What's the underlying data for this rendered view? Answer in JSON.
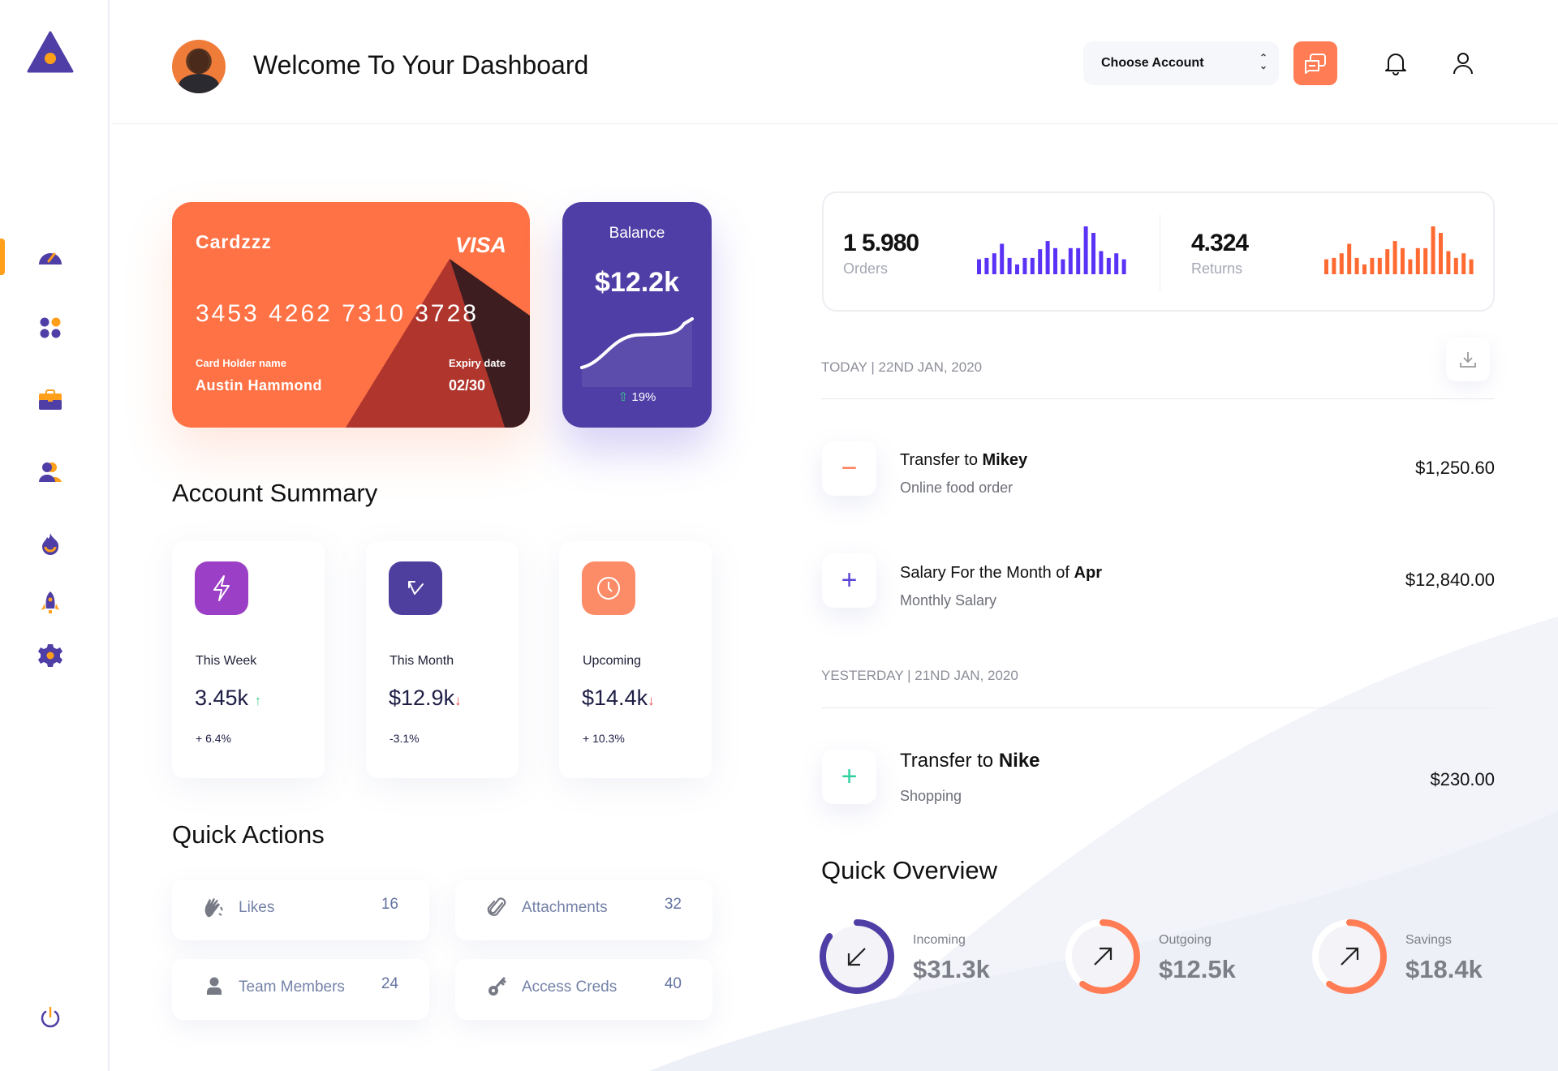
{
  "header": {
    "title": "Welcome To Your Dashboard",
    "account_select": "Choose Account"
  },
  "sidebar": {
    "items": [
      "dashboard",
      "apps",
      "portfolio",
      "users",
      "trending",
      "launch",
      "settings"
    ],
    "active": "dashboard"
  },
  "card": {
    "brand": "Cardzzz",
    "network": "VISA",
    "number": "3453 4262 7310 3728",
    "holder_label": "Card Holder name",
    "holder": "Austin Hammond",
    "expiry_label": "Expiry date",
    "expiry": "02/30"
  },
  "balance": {
    "label": "Balance",
    "value": "$12.2k",
    "change": "19%"
  },
  "account_summary": {
    "title": "Account Summary",
    "items": [
      {
        "label": "This Week",
        "value": "3.45k",
        "change": "+ 6.4%",
        "trend": "up",
        "icon": "lightning-icon",
        "color": "#9b3fc6"
      },
      {
        "label": "This Month",
        "value": "$12.9k",
        "change": "-3.1%",
        "trend": "down",
        "icon": "arrow-up-left-icon",
        "color": "#4e3f9e"
      },
      {
        "label": "Upcoming",
        "value": "$14.4k",
        "change": "+ 10.3%",
        "trend": "down",
        "icon": "clock-icon",
        "color": "#fb8c67"
      }
    ]
  },
  "quick_actions": {
    "title": "Quick Actions",
    "items": [
      {
        "label": "Likes",
        "count": "16",
        "icon": "clap-icon"
      },
      {
        "label": "Attachments",
        "count": "32",
        "icon": "paperclip-icon"
      },
      {
        "label": "Team Members",
        "count": "24",
        "icon": "user-icon"
      },
      {
        "label": "Access Creds",
        "count": "40",
        "icon": "key-icon"
      }
    ]
  },
  "stats": {
    "orders": {
      "value": "1 5.980",
      "label": "Orders",
      "bars": [
        55,
        60,
        77,
        112,
        60,
        36,
        60,
        60,
        92,
        122,
        96,
        55,
        96,
        96,
        176,
        152,
        85,
        60,
        77,
        55
      ],
      "color": "#5a32f5"
    },
    "returns": {
      "value": "4.324",
      "label": "Returns",
      "bars": [
        55,
        60,
        77,
        112,
        60,
        36,
        60,
        60,
        92,
        122,
        96,
        55,
        96,
        96,
        176,
        152,
        85,
        60,
        77,
        55
      ],
      "color": "#ff6a33"
    }
  },
  "transactions": {
    "groups": [
      {
        "header": "TODAY | 22ND JAN, 2020",
        "items": [
          {
            "title_prefix": "Transfer to ",
            "title_bold": "Mikey",
            "subtitle": "Online food order",
            "amount": "$1,250.60",
            "sign": "−",
            "sign_color": "#ff7c55"
          },
          {
            "title_prefix": "Salary For the Month of ",
            "title_bold": "Apr",
            "subtitle": "Monthly Salary",
            "amount": "$12,840.00",
            "sign": "+",
            "sign_color": "#5a45d6"
          }
        ]
      },
      {
        "header": "YESTERDAY | 21ND JAN, 2020",
        "items": [
          {
            "title_prefix": "Transfer to ",
            "title_bold": "Nike",
            "subtitle": "Shopping",
            "amount": "$230.00",
            "sign": "+",
            "sign_color": "#2fd0a0"
          }
        ]
      }
    ]
  },
  "overview": {
    "title": "Quick Overview",
    "items": [
      {
        "label": "Incoming",
        "value": "$31.3k",
        "progress": 0.85,
        "color": "#4e3ea5",
        "icon": "arrow-down-left-icon"
      },
      {
        "label": "Outgoing",
        "value": "$12.5k",
        "progress": 0.6,
        "color": "#ff7c55",
        "icon": "arrow-up-right-icon"
      },
      {
        "label": "Savings",
        "value": "$18.4k",
        "progress": 0.6,
        "color": "#ff7c55",
        "icon": "arrow-up-right-icon"
      }
    ]
  }
}
